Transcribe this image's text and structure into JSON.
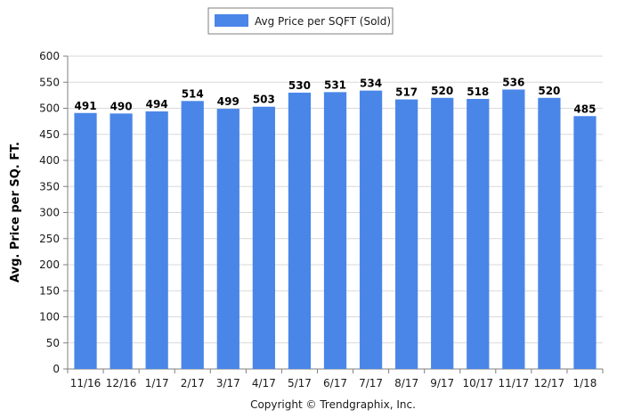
{
  "legend": {
    "label": "Avg Price per SQFT (Sold)"
  },
  "copyright": "Copyright © Trendgraphix, Inc.",
  "colors": {
    "bar": "#4a86e8",
    "grid": "#d9d9d9"
  },
  "chart_data": {
    "type": "bar",
    "title": "",
    "xlabel": "",
    "ylabel": "Avg. Price per SQ. FT.",
    "ylim": [
      0,
      600
    ],
    "yticks": [
      0,
      50,
      100,
      150,
      200,
      250,
      300,
      350,
      400,
      450,
      500,
      550,
      600
    ],
    "grid": true,
    "legend_position": "top",
    "categories": [
      "11/16",
      "12/16",
      "1/17",
      "2/17",
      "3/17",
      "4/17",
      "5/17",
      "6/17",
      "7/17",
      "8/17",
      "9/17",
      "10/17",
      "11/17",
      "12/17",
      "1/18"
    ],
    "series": [
      {
        "name": "Avg Price per SQFT (Sold)",
        "values": [
          491,
          490,
          494,
          514,
          499,
          503,
          530,
          531,
          534,
          517,
          520,
          518,
          536,
          520,
          485
        ]
      }
    ]
  }
}
